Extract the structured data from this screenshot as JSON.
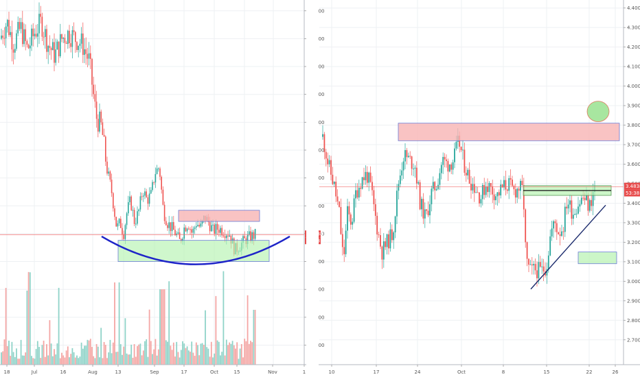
{
  "colors": {
    "up": "#26a69a",
    "down": "#ef5350",
    "vol_up": "#8fd3c8",
    "vol_down": "#f4a6a4",
    "resistance_fill": "#f8b4b4",
    "support_fill": "#b6f2b0",
    "cup_curve": "#1e24c8",
    "trendline": "#1a2a6c",
    "price_line": "#f06a6a",
    "target_circle": "#a8e6a0"
  },
  "chart_data": [
    {
      "type": "candlestick",
      "title": "",
      "x_tick_labels": [
        "18",
        "Jul",
        "16",
        "Aug",
        "13",
        "Sep",
        "17",
        "Oct",
        "15",
        "Nov",
        "1"
      ],
      "y_tick_labels": [
        "1.5000",
        "2.0000",
        "2.5000",
        "3.0000",
        "3.5000",
        "4.0000",
        "4.5000",
        "5.0000",
        "5.5000",
        "6.0000",
        "6.5000",
        "7.0000",
        "7.5000"
      ],
      "ylim": [
        1.42,
        7.62
      ],
      "last_price_tag": "3.4838",
      "countdown_tag": "00:53:38",
      "annotations": [
        {
          "kind": "resistance-box",
          "x_range": [
            "Sep 13",
            "Oct 20"
          ],
          "y_range": [
            3.72,
            3.92
          ]
        },
        {
          "kind": "support-box",
          "x_range": [
            "Aug 13",
            "Oct 20"
          ],
          "y_range": [
            3.0,
            3.38
          ]
        },
        {
          "kind": "rounded-bottom-arc",
          "x_range": [
            "Aug 7",
            "Oct 23"
          ],
          "y_low": 2.95,
          "y_high": 3.45
        }
      ],
      "grid": true
    },
    {
      "type": "candlestick",
      "title": "",
      "x_tick_labels": [
        "10",
        "17",
        "24",
        "Oct",
        "8",
        "15",
        "22",
        "26"
      ],
      "y_tick_labels": [
        "2.7000",
        "2.8000",
        "2.9000",
        "3.0000",
        "3.1000",
        "3.2000",
        "3.3000",
        "3.4000",
        "3.5000",
        "3.6000",
        "3.7000",
        "3.8000",
        "3.9000",
        "4.0000",
        "4.1000",
        "4.2000",
        "4.3000",
        "4.4000"
      ],
      "ylim": [
        2.65,
        4.42
      ],
      "last_price_tag": "3.4838",
      "countdown_tag": "53:38",
      "annotations": [
        {
          "kind": "resistance-box",
          "x_range": [
            "Sep 20",
            "Oct 23"
          ],
          "y_range": [
            3.72,
            3.81
          ]
        },
        {
          "kind": "support-box",
          "x_range": [
            "Oct 10",
            "Oct 23"
          ],
          "y_range": [
            3.44,
            3.49
          ]
        },
        {
          "kind": "target-box",
          "x_range": [
            "Oct 18",
            "Oct 23"
          ],
          "y_range": [
            3.09,
            3.15
          ]
        },
        {
          "kind": "target-circle",
          "x": "Oct 21",
          "y": 3.87
        },
        {
          "kind": "ascending-trendline",
          "from": [
            "Oct 12",
            2.96
          ],
          "to": [
            "Oct 23",
            3.39
          ]
        }
      ],
      "grid": true
    }
  ]
}
